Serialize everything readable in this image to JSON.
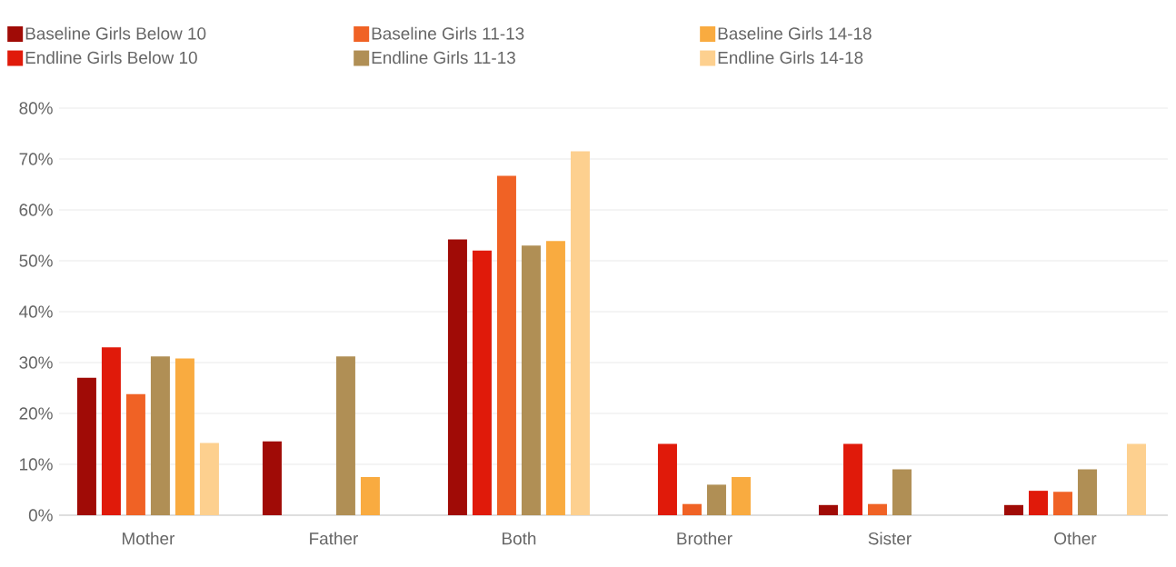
{
  "chart_data": {
    "type": "bar",
    "categories": [
      "Mother",
      "Father",
      "Both",
      "Brother",
      "Sister",
      "Other"
    ],
    "series": [
      {
        "name": "Baseline Girls Below 10",
        "color": "#a00b06",
        "values": [
          27,
          14.5,
          54.2,
          0,
          2,
          2
        ]
      },
      {
        "name": "Endline  Girls Below 10",
        "color": "#e01a0a",
        "values": [
          33,
          0,
          52,
          14,
          14,
          4.8
        ]
      },
      {
        "name": "Baseline Girls 11-13",
        "color": "#f06225",
        "values": [
          23.8,
          0,
          66.7,
          2.2,
          2.2,
          4.6
        ]
      },
      {
        "name": "Endline  Girls 11-13",
        "color": "#b08f55",
        "values": [
          31.2,
          31.2,
          53,
          6,
          9,
          9
        ]
      },
      {
        "name": "Baseline Girls 14-18",
        "color": "#f9ab40",
        "values": [
          30.8,
          7.5,
          53.9,
          7.5,
          0,
          0
        ]
      },
      {
        "name": "Endline  Girls 14-18",
        "color": "#fdd08f",
        "values": [
          14.2,
          0,
          71.5,
          0,
          0,
          14
        ]
      }
    ],
    "ylim": [
      0,
      80
    ],
    "yticks": [
      {
        "value": 0,
        "label": "0%"
      },
      {
        "value": 10,
        "label": "10%"
      },
      {
        "value": 20,
        "label": "20%"
      },
      {
        "value": 30,
        "label": "30%"
      },
      {
        "value": 40,
        "label": "40%"
      },
      {
        "value": 50,
        "label": "50%"
      },
      {
        "value": 60,
        "label": "60%"
      },
      {
        "value": 70,
        "label": "70%"
      },
      {
        "value": 80,
        "label": "80%"
      }
    ],
    "grid": "y",
    "legend": "top left"
  }
}
